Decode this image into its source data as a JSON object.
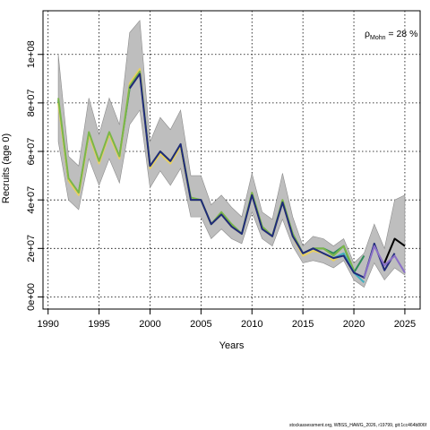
{
  "chart_data": {
    "type": "line",
    "xlabel": "Years",
    "ylabel": "Recruits (age 0)",
    "xlim": [
      1989.5,
      2026.5
    ],
    "ylim": [
      -5000000,
      118000000
    ],
    "grid": true,
    "x_ticks": [
      1990,
      1995,
      2000,
      2005,
      2010,
      2015,
      2020,
      2025
    ],
    "x_tick_labels": [
      "1990",
      "1995",
      "2000",
      "2005",
      "2010",
      "2015",
      "2020",
      "2025"
    ],
    "y_ticks": [
      0,
      20000000,
      40000000,
      60000000,
      80000000,
      100000000
    ],
    "y_tick_labels": [
      "0e+00",
      "2e+07",
      "4e+07",
      "6e+07",
      "8e+07",
      "1e+08"
    ],
    "annotation": {
      "rho_symbol": "ρ",
      "rho_subscript": "Mohn",
      "rho_value": " = 28 %"
    },
    "footer": "stockassessment.org, WBSS_HAWG_2026, r19799, git:1cc464b806f",
    "band": {
      "x": [
        1991,
        1992,
        1993,
        1994,
        1995,
        1996,
        1997,
        1998,
        1999,
        2000,
        2001,
        2002,
        2003,
        2004,
        2005,
        2006,
        2007,
        2008,
        2009,
        2010,
        2011,
        2012,
        2013,
        2014,
        2015,
        2016,
        2017,
        2018,
        2019,
        2020,
        2021,
        2022,
        2023,
        2024,
        2025
      ],
      "upper": [
        100000000,
        58000000,
        54000000,
        82000000,
        67000000,
        82000000,
        71000000,
        109000000,
        114000000,
        64000000,
        74000000,
        69000000,
        77000000,
        50000000,
        50000000,
        38000000,
        42000000,
        37000000,
        33000000,
        51000000,
        35000000,
        32000000,
        51000000,
        33000000,
        21000000,
        25000000,
        24000000,
        21000000,
        24000000,
        14000000,
        18000000,
        30000000,
        20000000,
        40000000,
        42000000
      ],
      "lower": [
        64000000,
        40000000,
        36000000,
        57000000,
        46000000,
        57000000,
        47000000,
        71000000,
        77000000,
        45000000,
        52000000,
        46000000,
        53000000,
        33000000,
        33000000,
        24000000,
        28000000,
        24000000,
        22000000,
        35000000,
        24000000,
        21000000,
        32000000,
        21000000,
        14000000,
        15000000,
        14000000,
        12000000,
        15000000,
        7000000,
        4000000,
        14000000,
        7000000,
        12000000,
        9000000
      ]
    },
    "series": [
      {
        "color": "#2E8B57",
        "x": [
          1991,
          1992,
          1993,
          1994,
          1995,
          1996,
          1997,
          1998,
          1999,
          2000,
          2001,
          2002,
          2003,
          2004,
          2005,
          2006,
          2007,
          2008,
          2009,
          2010,
          2011,
          2012,
          2013,
          2014,
          2015,
          2016,
          2017,
          2018,
          2019,
          2020,
          2021
        ],
        "values": [
          81000000,
          48000000,
          43000000,
          67000000,
          56000000,
          67000000,
          58000000,
          86000000,
          93000000,
          54000000,
          59000000,
          56000000,
          62000000,
          40000000,
          40000000,
          30000000,
          34000000,
          30000000,
          26000000,
          42000000,
          29000000,
          25000000,
          39000000,
          26000000,
          18000000,
          20000000,
          20000000,
          18000000,
          21000000,
          10000000,
          17000000
        ]
      },
      {
        "color": "#E8D060",
        "x": [
          1991,
          1992,
          1993,
          1994,
          1995,
          1996,
          1997,
          1998,
          1999,
          2000,
          2001,
          2002,
          2003,
          2004,
          2005,
          2006,
          2007,
          2008,
          2009,
          2010,
          2011,
          2012,
          2013,
          2014,
          2015,
          2016,
          2017,
          2018,
          2019,
          2020
        ],
        "values": [
          80000000,
          48000000,
          42000000,
          67000000,
          55000000,
          67000000,
          57000000,
          88000000,
          94000000,
          53000000,
          59000000,
          55000000,
          62000000,
          40000000,
          40000000,
          30000000,
          34000000,
          29000000,
          26000000,
          42000000,
          28000000,
          25000000,
          39000000,
          25000000,
          17000000,
          19000000,
          18000000,
          15000000,
          18000000,
          10000000
        ]
      },
      {
        "color": "#7AB648",
        "x": [
          1991,
          1992,
          1993,
          1994,
          1995,
          1996,
          1997,
          1998,
          1999,
          2000,
          2001,
          2002,
          2003,
          2004,
          2005,
          2006,
          2007,
          2008,
          2009,
          2010,
          2011,
          2012,
          2013,
          2014,
          2015,
          2016,
          2017,
          2018,
          2019,
          2020
        ],
        "values": [
          82000000,
          49000000,
          43000000,
          68000000,
          56000000,
          68000000,
          58000000,
          87000000,
          93000000,
          54000000,
          60000000,
          56000000,
          63000000,
          41000000,
          40000000,
          30000000,
          35000000,
          30000000,
          26000000,
          43000000,
          29000000,
          25000000,
          40000000,
          26000000,
          18000000,
          20000000,
          20000000,
          17000000,
          21000000,
          11000000
        ]
      },
      {
        "color": "#40B0C0",
        "x": [
          2017,
          2018,
          2019,
          2020,
          2021
        ],
        "values": [
          18000000,
          16000000,
          18000000,
          10000000,
          6000000
        ]
      },
      {
        "color": "#1F2A7A",
        "x": [
          1998,
          1999,
          2000,
          2001,
          2002,
          2003,
          2004,
          2005,
          2006,
          2007,
          2008,
          2009,
          2010,
          2011,
          2012,
          2013,
          2014,
          2015,
          2016,
          2017,
          2018,
          2019,
          2020,
          2021,
          2022,
          2023,
          2024
        ],
        "values": [
          86000000,
          92000000,
          54000000,
          60000000,
          56000000,
          63000000,
          40000000,
          40000000,
          30000000,
          34000000,
          29000000,
          26000000,
          42000000,
          28000000,
          25000000,
          39000000,
          25000000,
          18000000,
          20000000,
          18000000,
          16000000,
          17000000,
          10000000,
          8000000,
          22000000,
          11000000,
          18000000
        ]
      },
      {
        "color": "#8A70C8",
        "x": [
          2021,
          2022,
          2023,
          2024,
          2025
        ],
        "values": [
          8000000,
          21000000,
          13000000,
          17000000,
          10000000
        ]
      },
      {
        "color": "#000000",
        "x": [
          2023,
          2024,
          2025
        ],
        "values": [
          14000000,
          24000000,
          21000000
        ]
      }
    ]
  }
}
